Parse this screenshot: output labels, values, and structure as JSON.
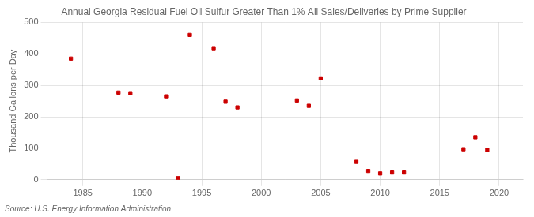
{
  "chart_data": {
    "type": "scatter",
    "title": "Annual Georgia Residual Fuel Oil Sulfur Greater Than 1% All Sales/Deliveries by Prime Supplier",
    "ylabel": "Thousand Gallons per Day",
    "annotations": [
      "Source: U.S. Energy Information Administration"
    ],
    "x": [
      1984,
      1988,
      1989,
      1992,
      1993,
      1994,
      1996,
      1997,
      1998,
      2003,
      2004,
      2005,
      2008,
      2009,
      2010,
      2011,
      2012,
      2017,
      2018,
      2019
    ],
    "values": [
      385,
      277,
      275,
      265,
      5,
      460,
      418,
      248,
      230,
      252,
      235,
      322,
      57,
      28,
      20,
      23,
      23,
      97,
      135,
      95
    ],
    "color": "#cc0000",
    "marker": "square",
    "xlim": [
      1982,
      2022
    ],
    "ylim": [
      0,
      500
    ],
    "xticks": [
      1985,
      1990,
      1995,
      2000,
      2005,
      2010,
      2015,
      2020
    ],
    "yticks": [
      0,
      100,
      200,
      300,
      400,
      500
    ],
    "grid": true
  }
}
